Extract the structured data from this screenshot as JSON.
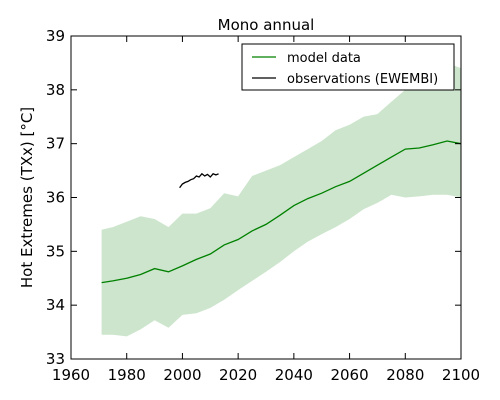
{
  "chart_data": {
    "type": "line",
    "title": "Mono annual",
    "xlabel": "",
    "ylabel": "Hot Extremes (TXx) [$^\\circ C$]",
    "ylabel_display": "Hot Extremes (TXx) [°C]",
    "xlim": [
      1960,
      2100
    ],
    "ylim": [
      33,
      39
    ],
    "xticks": [
      1960,
      1980,
      2000,
      2020,
      2040,
      2060,
      2080,
      2100
    ],
    "yticks": [
      33,
      34,
      35,
      36,
      37,
      38,
      39
    ],
    "grid": false,
    "legend": {
      "position": "top-right"
    },
    "series": [
      {
        "name": "model data",
        "color": "#008000",
        "band_color": "#cce5cc",
        "x": [
          1971,
          1975,
          1980,
          1985,
          1990,
          1995,
          2000,
          2005,
          2010,
          2015,
          2020,
          2025,
          2030,
          2035,
          2040,
          2045,
          2050,
          2055,
          2060,
          2065,
          2070,
          2075,
          2080,
          2085,
          2090,
          2095,
          2100
        ],
        "values": [
          34.42,
          34.45,
          34.5,
          34.57,
          34.68,
          34.62,
          34.73,
          34.85,
          34.95,
          35.12,
          35.22,
          35.38,
          35.5,
          35.67,
          35.85,
          35.98,
          36.08,
          36.2,
          36.3,
          36.45,
          36.6,
          36.75,
          36.9,
          36.92,
          36.98,
          37.05,
          37.0
        ],
        "lower": [
          33.45,
          33.45,
          33.42,
          33.55,
          33.72,
          33.58,
          33.82,
          33.85,
          33.95,
          34.1,
          34.28,
          34.45,
          34.62,
          34.8,
          35.0,
          35.18,
          35.32,
          35.45,
          35.6,
          35.78,
          35.9,
          36.05,
          36.0,
          36.02,
          36.05,
          36.05,
          36.0
        ],
        "upper": [
          35.4,
          35.45,
          35.55,
          35.65,
          35.6,
          35.45,
          35.7,
          35.7,
          35.8,
          36.08,
          36.02,
          36.4,
          36.5,
          36.6,
          36.75,
          36.9,
          37.05,
          37.25,
          37.35,
          37.5,
          37.55,
          37.78,
          38.0,
          38.3,
          38.55,
          38.5,
          38.4
        ]
      },
      {
        "name": "observations (EWEMBI)",
        "color": "#000000",
        "x": [
          1999,
          2000,
          2001,
          2002,
          2003,
          2004,
          2005,
          2006,
          2007,
          2008,
          2009,
          2010,
          2011,
          2012,
          2013
        ],
        "values": [
          36.18,
          36.25,
          36.28,
          36.3,
          36.33,
          36.35,
          36.4,
          36.38,
          36.44,
          36.4,
          36.43,
          36.38,
          36.44,
          36.42,
          36.44
        ]
      }
    ]
  }
}
